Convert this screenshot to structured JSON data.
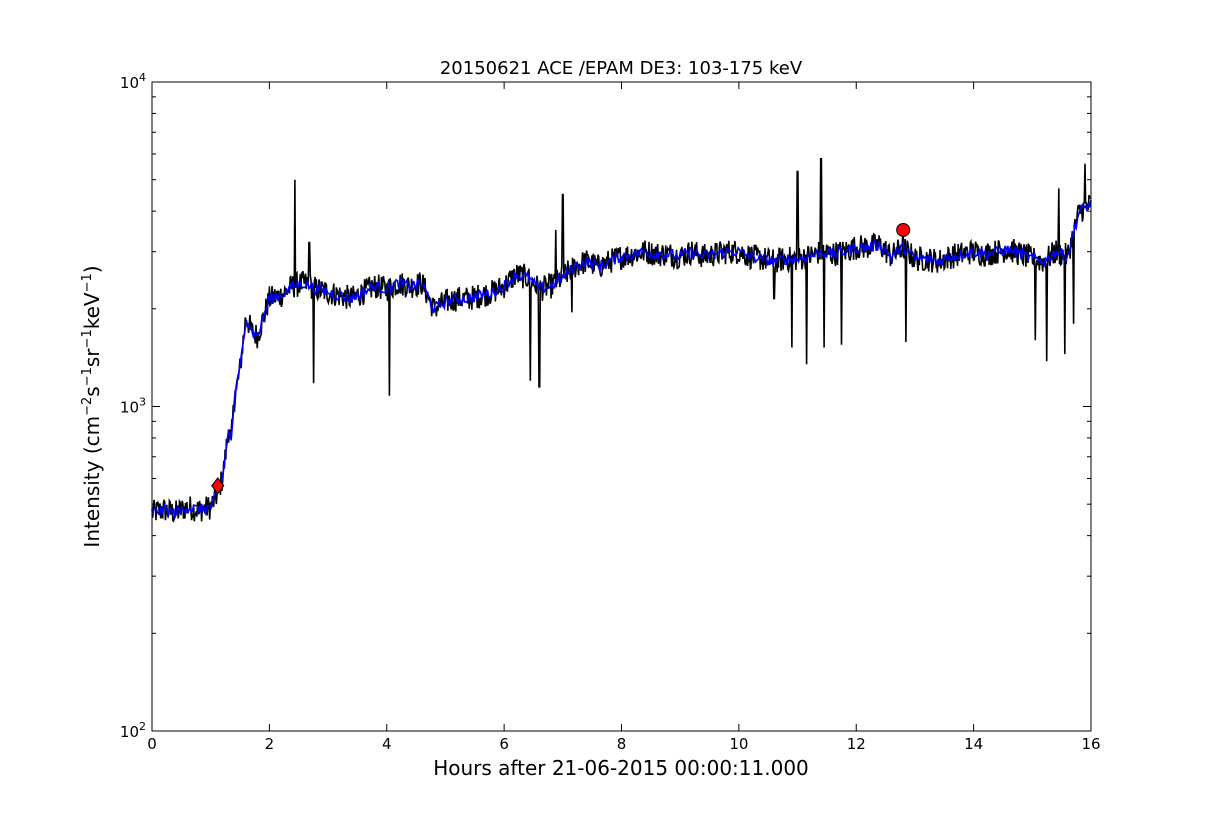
{
  "chart_data": {
    "type": "line",
    "title": "20150621 ACE /EPAM DE3: 103-175 keV",
    "xlabel": "Hours after 21-06-2015 00:00:11.000",
    "ylabel": "Intensity (cm$^{-2}$s$^{-1}$sr$^{-1}$keV$^{-1}$)",
    "xlim": [
      0,
      16
    ],
    "ylim": [
      100,
      10000
    ],
    "yscale": "log",
    "grid": false,
    "legend": "none",
    "xticks": [
      "0",
      "2",
      "4",
      "6",
      "8",
      "10",
      "12",
      "14",
      "16"
    ],
    "yticks": [
      {
        "value": 100,
        "base": "10",
        "exp": "2"
      },
      {
        "value": 1000,
        "base": "10",
        "exp": "3"
      },
      {
        "value": 10000,
        "base": "10",
        "exp": "4"
      }
    ],
    "series": [
      {
        "color": "#000000",
        "style": "raw",
        "points": [
          [
            0,
            470
          ],
          [
            0.2,
            480
          ],
          [
            0.4,
            470
          ],
          [
            0.6,
            490
          ],
          [
            0.8,
            480
          ],
          [
            1.0,
            490
          ],
          [
            1.1,
            530
          ],
          [
            1.2,
            600
          ],
          [
            1.25,
            700
          ],
          [
            1.3,
            850
          ],
          [
            1.35,
            780
          ],
          [
            1.4,
            1050
          ],
          [
            1.5,
            1300
          ],
          [
            1.6,
            1900
          ],
          [
            1.7,
            1700
          ],
          [
            1.8,
            1650
          ],
          [
            2.0,
            2150
          ],
          [
            2.2,
            2200
          ],
          [
            2.4,
            2350
          ],
          [
            2.6,
            2400
          ],
          [
            2.8,
            2300
          ],
          [
            3.0,
            2250
          ],
          [
            3.2,
            2200
          ],
          [
            3.4,
            2150
          ],
          [
            3.6,
            2250
          ],
          [
            3.8,
            2350
          ],
          [
            4.0,
            2300
          ],
          [
            4.2,
            2400
          ],
          [
            4.4,
            2350
          ],
          [
            4.6,
            2400
          ],
          [
            4.8,
            2000
          ],
          [
            5.0,
            2100
          ],
          [
            5.2,
            2150
          ],
          [
            5.4,
            2150
          ],
          [
            5.6,
            2200
          ],
          [
            5.8,
            2250
          ],
          [
            6.0,
            2350
          ],
          [
            6.2,
            2550
          ],
          [
            6.4,
            2500
          ],
          [
            6.6,
            2300
          ],
          [
            6.8,
            2350
          ],
          [
            7.0,
            2500
          ],
          [
            7.2,
            2700
          ],
          [
            7.4,
            2800
          ],
          [
            7.6,
            2700
          ],
          [
            7.8,
            2800
          ],
          [
            8.0,
            2900
          ],
          [
            8.2,
            2950
          ],
          [
            8.4,
            3000
          ],
          [
            8.6,
            2950
          ],
          [
            8.8,
            2950
          ],
          [
            9.0,
            2900
          ],
          [
            9.2,
            3000
          ],
          [
            9.4,
            2900
          ],
          [
            9.6,
            2950
          ],
          [
            9.8,
            3000
          ],
          [
            10.0,
            3000
          ],
          [
            10.2,
            2900
          ],
          [
            10.4,
            2850
          ],
          [
            10.6,
            2800
          ],
          [
            10.8,
            2850
          ],
          [
            11.0,
            2850
          ],
          [
            11.2,
            2900
          ],
          [
            11.4,
            3000
          ],
          [
            11.6,
            2950
          ],
          [
            11.8,
            3000
          ],
          [
            12.0,
            3100
          ],
          [
            12.2,
            3100
          ],
          [
            12.4,
            3150
          ],
          [
            12.6,
            2900
          ],
          [
            12.8,
            3100
          ],
          [
            13.0,
            2850
          ],
          [
            13.2,
            2850
          ],
          [
            13.4,
            2800
          ],
          [
            13.6,
            2900
          ],
          [
            13.8,
            2950
          ],
          [
            14.0,
            3000
          ],
          [
            14.2,
            2950
          ],
          [
            14.4,
            3000
          ],
          [
            14.6,
            3050
          ],
          [
            14.8,
            2950
          ],
          [
            15.0,
            2850
          ],
          [
            15.2,
            2800
          ],
          [
            15.4,
            3000
          ],
          [
            15.6,
            2900
          ],
          [
            15.8,
            4000
          ],
          [
            16.0,
            4200
          ]
        ]
      },
      {
        "color": "#0000ff",
        "style": "smoothed",
        "points": [
          [
            0,
            470
          ],
          [
            0.2,
            480
          ],
          [
            0.4,
            470
          ],
          [
            0.6,
            490
          ],
          [
            0.8,
            480
          ],
          [
            1.0,
            490
          ],
          [
            1.1,
            530
          ],
          [
            1.2,
            600
          ],
          [
            1.25,
            700
          ],
          [
            1.3,
            850
          ],
          [
            1.35,
            780
          ],
          [
            1.4,
            1050
          ],
          [
            1.5,
            1300
          ],
          [
            1.6,
            1900
          ],
          [
            1.7,
            1700
          ],
          [
            1.8,
            1650
          ],
          [
            2.0,
            2150
          ],
          [
            2.2,
            2200
          ],
          [
            2.4,
            2350
          ],
          [
            2.6,
            2400
          ],
          [
            2.8,
            2300
          ],
          [
            3.0,
            2250
          ],
          [
            3.2,
            2200
          ],
          [
            3.4,
            2150
          ],
          [
            3.6,
            2250
          ],
          [
            3.8,
            2350
          ],
          [
            4.0,
            2300
          ],
          [
            4.2,
            2400
          ],
          [
            4.4,
            2350
          ],
          [
            4.6,
            2400
          ],
          [
            4.8,
            2000
          ],
          [
            5.0,
            2100
          ],
          [
            5.2,
            2150
          ],
          [
            5.4,
            2150
          ],
          [
            5.6,
            2200
          ],
          [
            5.8,
            2250
          ],
          [
            6.0,
            2350
          ],
          [
            6.2,
            2550
          ],
          [
            6.4,
            2500
          ],
          [
            6.6,
            2300
          ],
          [
            6.8,
            2350
          ],
          [
            7.0,
            2500
          ],
          [
            7.2,
            2700
          ],
          [
            7.4,
            2800
          ],
          [
            7.6,
            2700
          ],
          [
            7.8,
            2800
          ],
          [
            8.0,
            2900
          ],
          [
            8.2,
            2950
          ],
          [
            8.4,
            3000
          ],
          [
            8.6,
            2950
          ],
          [
            8.8,
            2950
          ],
          [
            9.0,
            2900
          ],
          [
            9.2,
            3000
          ],
          [
            9.4,
            2900
          ],
          [
            9.6,
            2950
          ],
          [
            9.8,
            3000
          ],
          [
            10.0,
            3000
          ],
          [
            10.2,
            2900
          ],
          [
            10.4,
            2850
          ],
          [
            10.6,
            2800
          ],
          [
            10.8,
            2850
          ],
          [
            11.0,
            2850
          ],
          [
            11.2,
            2900
          ],
          [
            11.4,
            3000
          ],
          [
            11.6,
            2950
          ],
          [
            11.8,
            3000
          ],
          [
            12.0,
            3100
          ],
          [
            12.2,
            3100
          ],
          [
            12.4,
            3150
          ],
          [
            12.6,
            2900
          ],
          [
            12.8,
            3100
          ],
          [
            13.0,
            2850
          ],
          [
            13.2,
            2850
          ],
          [
            13.4,
            2800
          ],
          [
            13.6,
            2900
          ],
          [
            13.8,
            2950
          ],
          [
            14.0,
            3000
          ],
          [
            14.2,
            2950
          ],
          [
            14.4,
            3000
          ],
          [
            14.6,
            3050
          ],
          [
            14.8,
            2950
          ],
          [
            15.0,
            2850
          ],
          [
            15.2,
            2800
          ],
          [
            15.4,
            3000
          ],
          [
            15.6,
            2900
          ],
          [
            15.8,
            4000
          ],
          [
            16.0,
            4200
          ]
        ]
      }
    ],
    "spikes": [
      {
        "x": 2.43,
        "y": 5000
      },
      {
        "x": 2.75,
        "y": 1180
      },
      {
        "x": 2.68,
        "y": 3200
      },
      {
        "x": 4.05,
        "y": 1080
      },
      {
        "x": 6.45,
        "y": 1200
      },
      {
        "x": 6.6,
        "y": 1150
      },
      {
        "x": 7.0,
        "y": 4500
      },
      {
        "x": 7.15,
        "y": 1950
      },
      {
        "x": 6.88,
        "y": 3500
      },
      {
        "x": 10.6,
        "y": 2150
      },
      {
        "x": 10.9,
        "y": 1520
      },
      {
        "x": 11.0,
        "y": 5300
      },
      {
        "x": 11.15,
        "y": 1350
      },
      {
        "x": 11.4,
        "y": 5800
      },
      {
        "x": 11.45,
        "y": 1520
      },
      {
        "x": 11.75,
        "y": 1550
      },
      {
        "x": 12.85,
        "y": 1580
      },
      {
        "x": 15.05,
        "y": 1600
      },
      {
        "x": 15.25,
        "y": 1380
      },
      {
        "x": 15.45,
        "y": 4700
      },
      {
        "x": 15.55,
        "y": 1450
      },
      {
        "x": 15.7,
        "y": 1800
      },
      {
        "x": 15.9,
        "y": 5600
      }
    ],
    "markers": [
      {
        "shape": "diamond",
        "color": "#ff0000",
        "x": 1.12,
        "y": 570
      },
      {
        "shape": "circle",
        "color": "#ff0000",
        "x": 12.8,
        "y": 3500
      }
    ]
  }
}
